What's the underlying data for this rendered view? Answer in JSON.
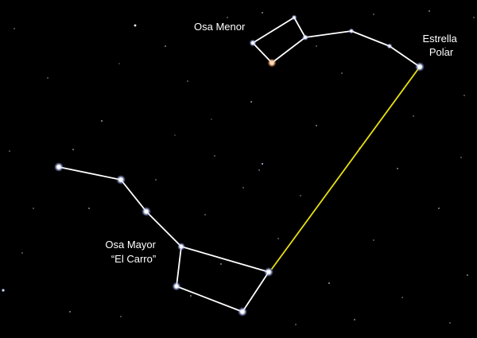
{
  "labels": {
    "little_dipper": "Osa Menor",
    "polaris_line1": "Estrella",
    "polaris_line2": "Polar",
    "big_dipper_line1": "Osa Mayor",
    "big_dipper_line2": "“El Carro”"
  },
  "colors": {
    "background": "#000000",
    "constellation_lines": "#ffffff",
    "pointer_line": "#e8e010",
    "star_white": "#ffffff",
    "star_blue_tint": "#b9c8ff",
    "star_orange": "#ffb27a"
  }
}
